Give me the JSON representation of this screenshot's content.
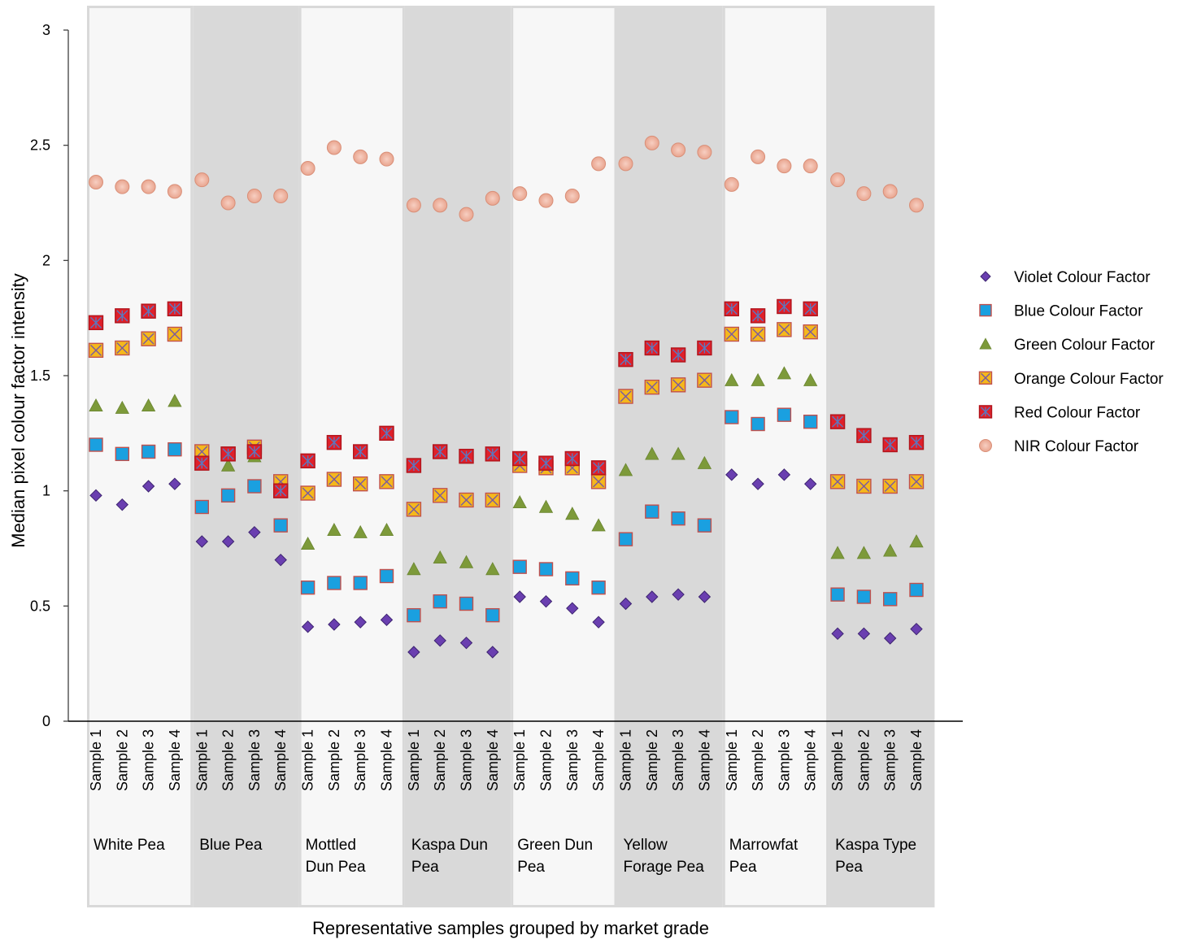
{
  "chart_data": {
    "type": "scatter",
    "title": "",
    "xlabel": "Representative samples grouped by market grade",
    "ylabel": "Median pixel colour factor intensity",
    "ylim": [
      0,
      3
    ],
    "yticks": [
      "0",
      "0.5",
      "1",
      "1.5",
      "2",
      "2.5",
      "3"
    ],
    "ytick_values": [
      0,
      0.5,
      1,
      1.5,
      2,
      2.5,
      3
    ],
    "grid": false,
    "legend_position": "right",
    "sample_labels": [
      "Sample 1",
      "Sample 2",
      "Sample 3",
      "Sample 4"
    ],
    "groups": [
      {
        "lines": [
          "White Pea"
        ],
        "shade": "light"
      },
      {
        "lines": [
          "Blue Pea"
        ],
        "shade": "dark"
      },
      {
        "lines": [
          "Mottled",
          "Dun Pea"
        ],
        "shade": "light"
      },
      {
        "lines": [
          "Kaspa Dun",
          "Pea"
        ],
        "shade": "dark"
      },
      {
        "lines": [
          "Green Dun",
          "Pea"
        ],
        "shade": "light"
      },
      {
        "lines": [
          "Yellow",
          "Forage Pea"
        ],
        "shade": "dark"
      },
      {
        "lines": [
          "Marrowfat",
          "Pea"
        ],
        "shade": "light"
      },
      {
        "lines": [
          "Kaspa Type",
          "Pea"
        ],
        "shade": "dark"
      }
    ],
    "series": [
      {
        "name": "Violet Colour Factor",
        "marker": "diamond",
        "color": "#6a3fb0",
        "values": [
          0.98,
          0.94,
          1.02,
          1.03,
          0.78,
          0.78,
          0.82,
          0.7,
          0.41,
          0.42,
          0.43,
          0.44,
          0.3,
          0.35,
          0.34,
          0.3,
          0.54,
          0.52,
          0.49,
          0.43,
          0.51,
          0.54,
          0.55,
          0.54,
          1.07,
          1.03,
          1.07,
          1.03,
          0.38,
          0.38,
          0.36,
          0.4
        ]
      },
      {
        "name": "Blue Colour Factor",
        "marker": "square",
        "color": "#1aa0e0",
        "values": [
          1.2,
          1.16,
          1.17,
          1.18,
          0.93,
          0.98,
          1.02,
          0.85,
          0.58,
          0.6,
          0.6,
          0.63,
          0.46,
          0.52,
          0.51,
          0.46,
          0.67,
          0.66,
          0.62,
          0.58,
          0.79,
          0.91,
          0.88,
          0.85,
          1.32,
          1.29,
          1.33,
          1.3,
          0.55,
          0.54,
          0.53,
          0.57
        ]
      },
      {
        "name": "Green Colour Factor",
        "marker": "triangle",
        "color": "#7d9a3a",
        "values": [
          1.37,
          1.36,
          1.37,
          1.39,
          1.16,
          1.11,
          1.15,
          1.04,
          0.77,
          0.83,
          0.82,
          0.83,
          0.66,
          0.71,
          0.69,
          0.66,
          0.95,
          0.93,
          0.9,
          0.85,
          1.09,
          1.16,
          1.16,
          1.12,
          1.48,
          1.48,
          1.51,
          1.48,
          0.73,
          0.73,
          0.74,
          0.78
        ]
      },
      {
        "name": "Orange Colour Factor",
        "marker": "xsquare",
        "color": "#f5b81c",
        "values": [
          1.61,
          1.62,
          1.66,
          1.68,
          1.17,
          1.16,
          1.19,
          1.04,
          0.99,
          1.05,
          1.03,
          1.04,
          0.92,
          0.98,
          0.96,
          0.96,
          1.11,
          1.1,
          1.1,
          1.04,
          1.41,
          1.45,
          1.46,
          1.48,
          1.68,
          1.68,
          1.7,
          1.69,
          1.04,
          1.02,
          1.02,
          1.04
        ]
      },
      {
        "name": "Red Colour Factor",
        "marker": "starsquare",
        "color": "#e0202a",
        "values": [
          1.73,
          1.76,
          1.78,
          1.79,
          1.12,
          1.16,
          1.17,
          1.0,
          1.13,
          1.21,
          1.17,
          1.25,
          1.11,
          1.17,
          1.15,
          1.16,
          1.14,
          1.12,
          1.14,
          1.1,
          1.57,
          1.62,
          1.59,
          1.62,
          1.79,
          1.76,
          1.8,
          1.79,
          1.3,
          1.24,
          1.2,
          1.21
        ]
      },
      {
        "name": "NIR Colour Factor",
        "marker": "circle",
        "color": "#f2b8a6",
        "values": [
          2.34,
          2.32,
          2.32,
          2.3,
          2.35,
          2.25,
          2.28,
          2.28,
          2.4,
          2.49,
          2.45,
          2.44,
          2.24,
          2.24,
          2.2,
          2.27,
          2.29,
          2.26,
          2.28,
          2.42,
          2.42,
          2.51,
          2.48,
          2.47,
          2.33,
          2.45,
          2.41,
          2.41,
          2.35,
          2.29,
          2.3,
          2.24
        ]
      }
    ]
  }
}
